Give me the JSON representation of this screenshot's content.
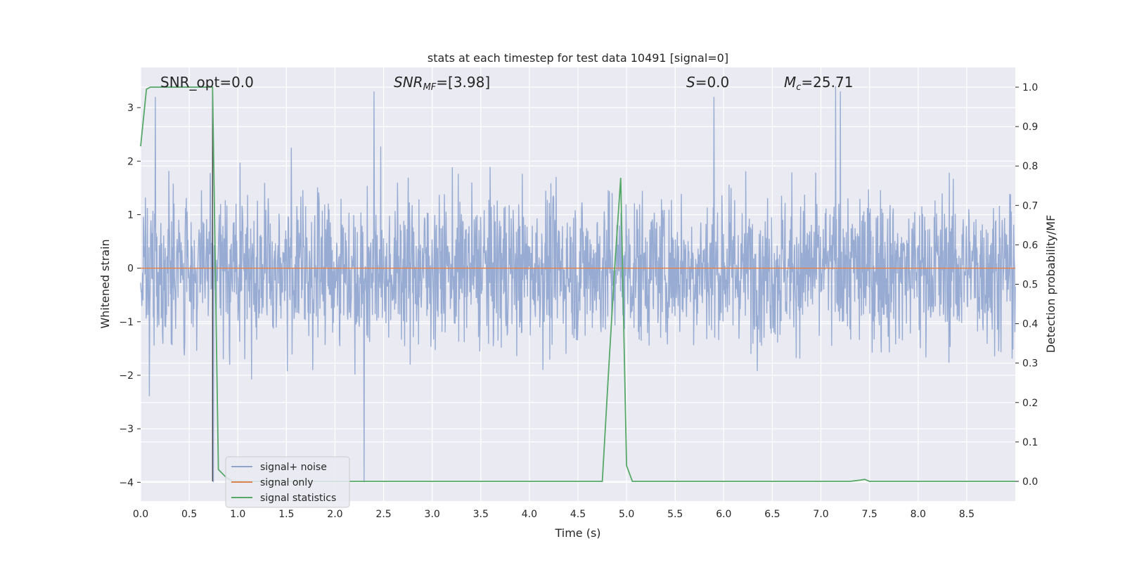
{
  "chart_data": {
    "type": "line",
    "title": "stats at each timestep for test data 10491 [signal=0]",
    "xlabel": "Time (s)",
    "ylabel_left": "Whitened strain",
    "ylabel_right": "Detection probability/MF",
    "xlim": [
      0.0,
      9.0
    ],
    "ylim_left": [
      -4.35,
      3.75
    ],
    "ylim_right": [
      -0.05,
      1.05
    ],
    "x_ticks": [
      "0.0",
      "0.5",
      "1.0",
      "1.5",
      "2.0",
      "2.5",
      "3.0",
      "3.5",
      "4.0",
      "4.5",
      "5.0",
      "5.5",
      "6.0",
      "6.5",
      "7.0",
      "7.5",
      "8.0",
      "8.5"
    ],
    "y_ticks_left": [
      "3",
      "2",
      "1",
      "0",
      "−1",
      "−2",
      "−3",
      "−4"
    ],
    "y_ticks_right": [
      "1.0",
      "0.9",
      "0.8",
      "0.7",
      "0.6",
      "0.5",
      "0.4",
      "0.3",
      "0.2",
      "0.1",
      "0.0"
    ],
    "grid": true,
    "legend_position": "lower-left",
    "annotations": {
      "snr_opt": "SNR_opt=0.0",
      "snr_mf_main": "SNR",
      "snr_mf_sub": "MF",
      "snr_mf_rest": "=[3.98]",
      "s_main": "S",
      "s_rest": "=0.0",
      "mc_main": "M",
      "mc_sub": "c",
      "mc_rest": "=25.71"
    },
    "series": [
      {
        "name": "signal+ noise",
        "color": "#8fa5cf",
        "axis": "left",
        "description_values": "noise amplitude approx within [-4.0, 3.4], mean 0",
        "extremes": [
          [
            0.15,
            3.2
          ],
          [
            0.75,
            -4.0
          ],
          [
            2.3,
            -4.0
          ],
          [
            2.4,
            3.3
          ],
          [
            5.9,
            3.2
          ],
          [
            7.15,
            3.4
          ],
          [
            7.2,
            3.3
          ]
        ]
      },
      {
        "name": "signal only",
        "color": "#dd8452",
        "axis": "left",
        "x": [
          0.0,
          9.0
        ],
        "y": [
          0.0,
          0.0
        ]
      },
      {
        "name": "signal statistics",
        "color": "#55a868",
        "axis": "right",
        "x": [
          0.0,
          0.06,
          0.1,
          0.7,
          0.74,
          0.8,
          0.88,
          0.95,
          1.2,
          2.0,
          3.0,
          4.0,
          4.75,
          4.82,
          4.88,
          4.94,
          5.0,
          5.06,
          5.2,
          6.0,
          7.0,
          7.3,
          7.4,
          7.45,
          7.5,
          8.0,
          9.0
        ],
        "y": [
          0.85,
          0.995,
          1.0,
          1.0,
          1.0,
          0.03,
          0.01,
          0.0,
          0.0,
          0.0,
          0.0,
          0.0,
          0.0,
          0.3,
          0.55,
          0.77,
          0.04,
          0.0,
          0.0,
          0.0,
          0.0,
          0.0,
          0.003,
          0.005,
          0.0,
          0.0,
          0.0
        ]
      }
    ],
    "vline": {
      "x": 0.74,
      "color": "#404040"
    }
  }
}
